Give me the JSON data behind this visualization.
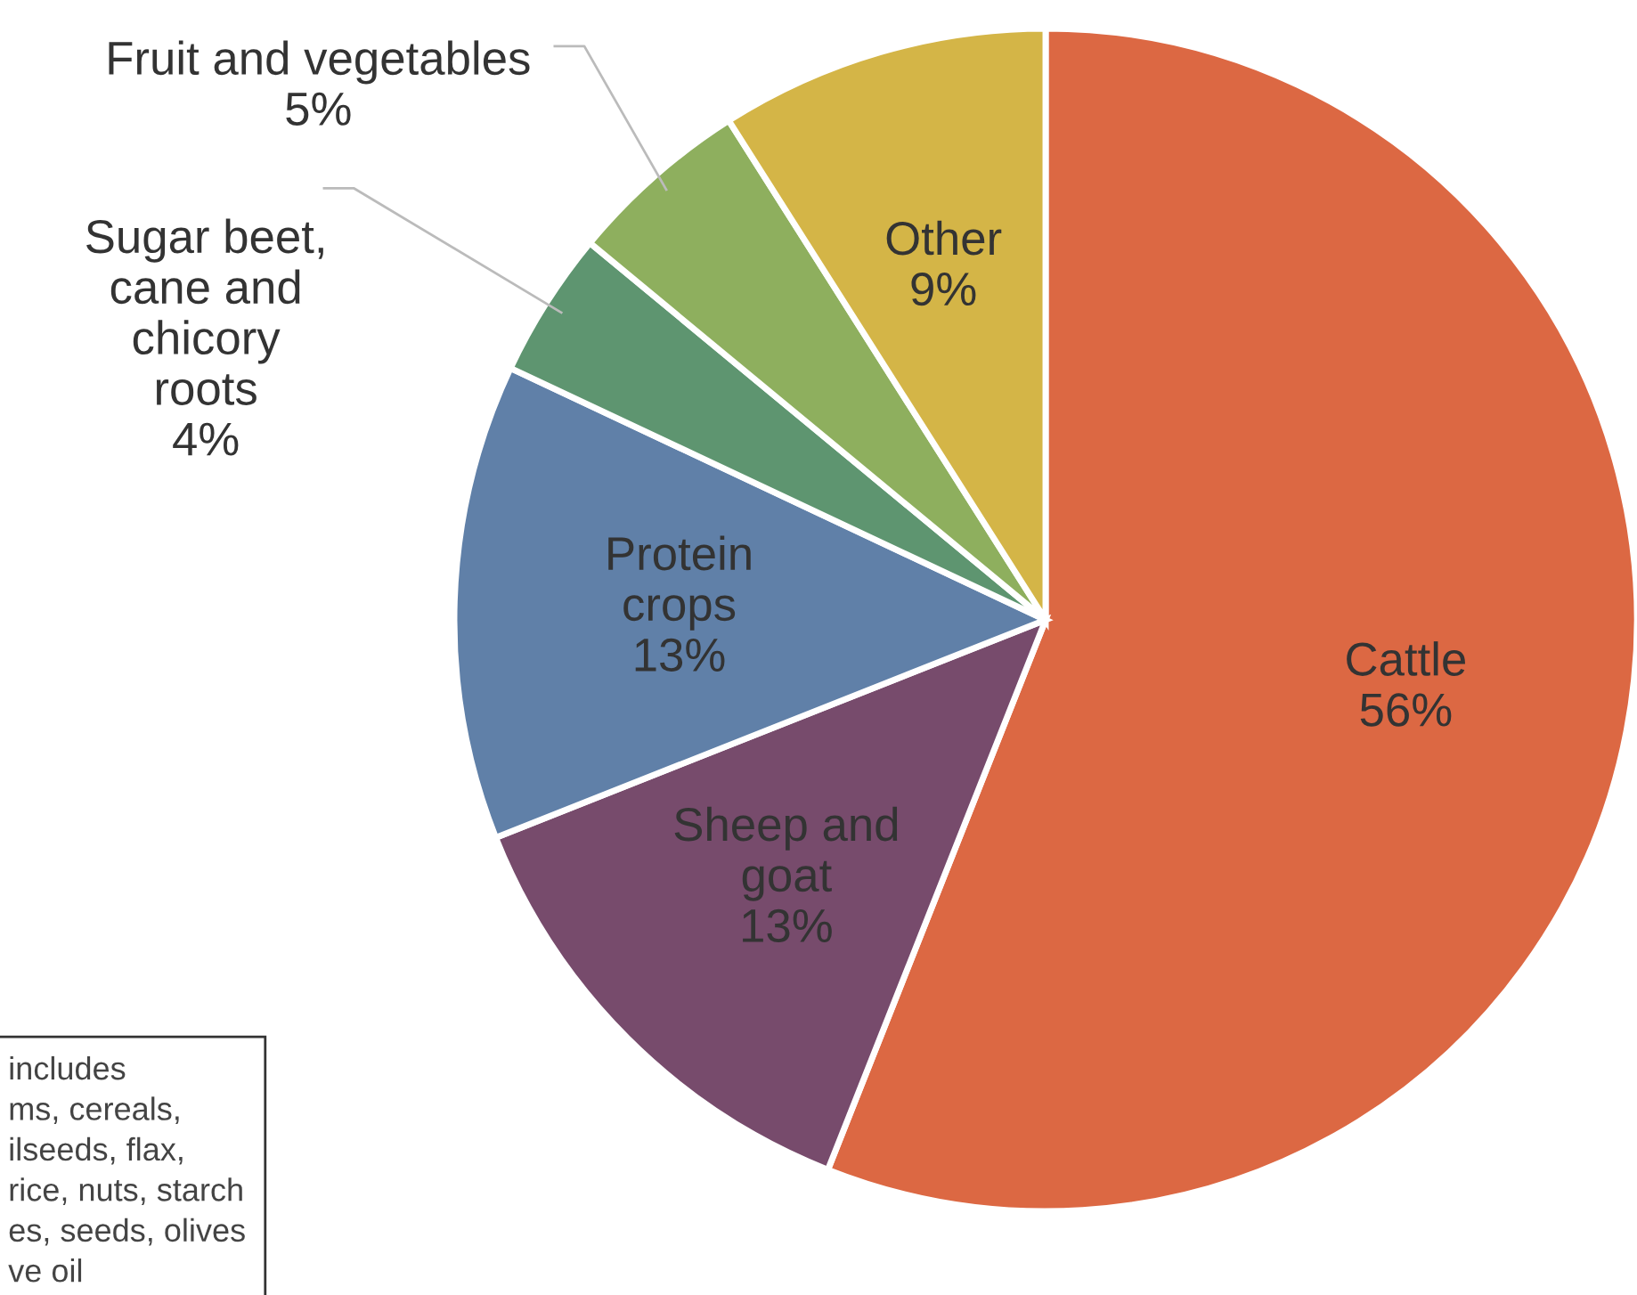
{
  "chart_data": {
    "type": "pie",
    "categories": [
      "Cattle",
      "Sheep and\ngoat",
      "Protein\ncrops",
      "Sugar beet,\ncane and\nchicory\nroots",
      "Fruit and vegetables",
      "Other"
    ],
    "values": [
      56,
      13,
      13,
      4,
      5,
      9
    ],
    "colors": [
      "#dc6843",
      "#774b6c",
      "#6080a8",
      "#5e9570",
      "#8eaf5e",
      "#d4b547"
    ],
    "value_labels": [
      "56%",
      "13%",
      "13%",
      "4%",
      "5%",
      "9%"
    ],
    "legend": false,
    "annotations": [
      "includes\nms, cereals,\nilseeds, flax,\nrice, nuts, starch\nes, seeds, olives\nve oil"
    ]
  }
}
